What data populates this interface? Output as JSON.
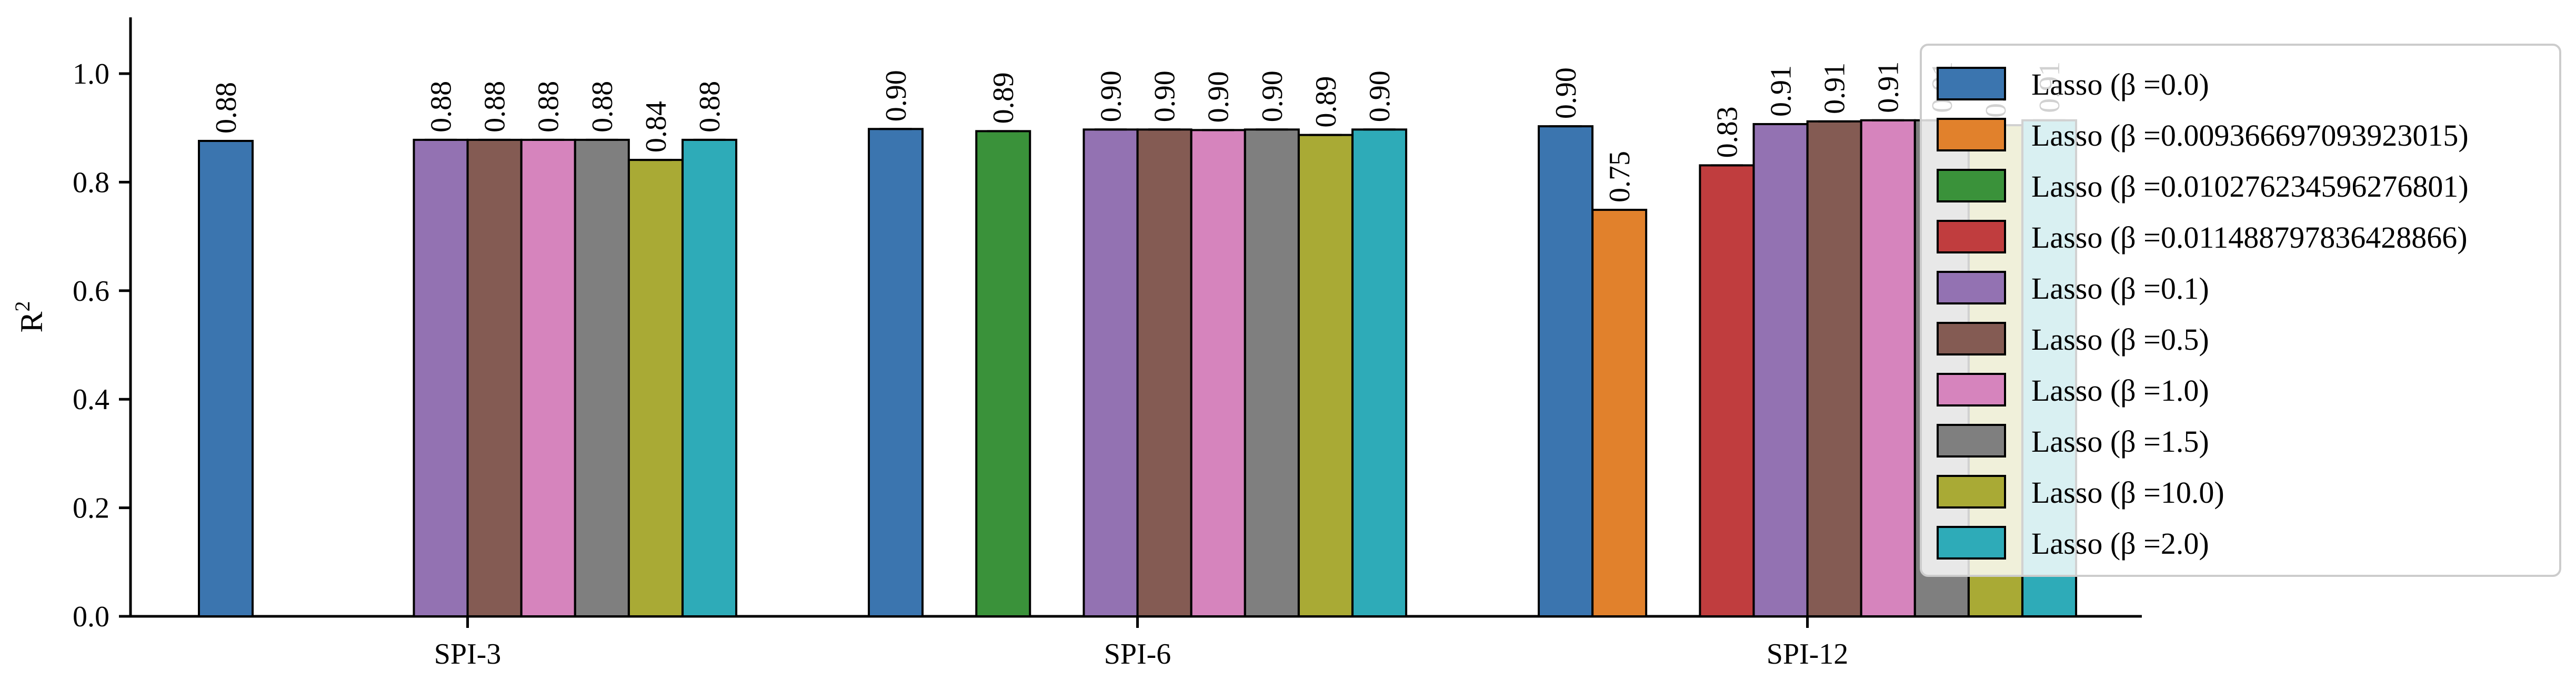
{
  "chart_data": {
    "type": "bar",
    "ylabel": "R",
    "ylabel_superscript": "2",
    "xlabel": "",
    "ylim": [
      0,
      1.1
    ],
    "yticks": [
      "0.0",
      "0.2",
      "0.4",
      "0.6",
      "0.8",
      "1.0"
    ],
    "categories": [
      "SPI-3",
      "SPI-6",
      "SPI-12"
    ],
    "legend_position": "upper-right",
    "series": [
      {
        "name": "Lasso (β =0.0)",
        "color": "#3b75af",
        "values": [
          0.876,
          0.898,
          0.903
        ],
        "labels": [
          "0.88",
          "0.90",
          "0.90"
        ]
      },
      {
        "name": "Lasso (β =0.009366697093923015)",
        "color": "#e1812c",
        "values": [
          null,
          null,
          0.749
        ],
        "labels": [
          null,
          null,
          "0.75"
        ]
      },
      {
        "name": "Lasso (β =0.010276234596276801)",
        "color": "#3a923a",
        "values": [
          null,
          0.894,
          null
        ],
        "labels": [
          null,
          "0.89",
          null
        ]
      },
      {
        "name": "Lasso (β =0.011488797836428866)",
        "color": "#c03d3e",
        "values": [
          null,
          null,
          0.831
        ],
        "labels": [
          null,
          null,
          "0.83"
        ]
      },
      {
        "name": "Lasso (β =0.1)",
        "color": "#9372b2",
        "values": [
          0.878,
          0.897,
          0.907
        ],
        "labels": [
          "0.88",
          "0.90",
          "0.91"
        ]
      },
      {
        "name": "Lasso (β =0.5)",
        "color": "#845b53",
        "values": [
          0.878,
          0.897,
          0.912
        ],
        "labels": [
          "0.88",
          "0.90",
          "0.91"
        ]
      },
      {
        "name": "Lasso (β =1.0)",
        "color": "#d684bd",
        "values": [
          0.878,
          0.896,
          0.914
        ],
        "labels": [
          "0.88",
          "0.90",
          "0.91"
        ]
      },
      {
        "name": "Lasso (β =1.5)",
        "color": "#7f7f7f",
        "values": [
          0.878,
          0.897,
          0.914
        ],
        "labels": [
          "0.88",
          "0.90",
          "0.91"
        ]
      },
      {
        "name": "Lasso (β =10.0)",
        "color": "#a9aa35",
        "values": [
          0.841,
          0.887,
          0.905
        ],
        "labels": [
          "0.84",
          "0.89",
          "0.91"
        ]
      },
      {
        "name": "Lasso (β =2.0)",
        "color": "#2eabb8",
        "values": [
          0.878,
          0.897,
          0.914
        ],
        "labels": [
          "0.88",
          "0.90",
          "0.91"
        ]
      }
    ]
  }
}
